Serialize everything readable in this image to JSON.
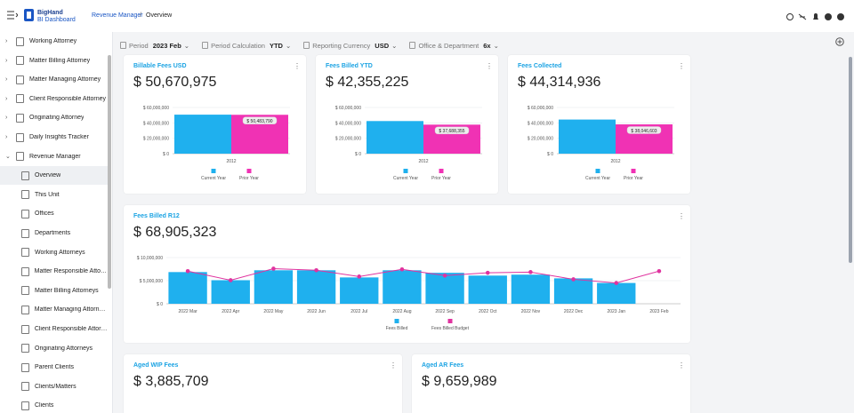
{
  "header": {
    "brand": "BigHand",
    "product": "BI Dashboard",
    "breadcrumb": [
      "Revenue Manager",
      "Overview"
    ]
  },
  "sidebar": {
    "items": [
      "Working Attorney",
      "Matter Billing Attorney",
      "Matter Managing Attorney",
      "Client Responsible Attorney",
      "Originating Attorney",
      "Daily Insights Tracker"
    ],
    "expanded": {
      "label": "Revenue Manager",
      "items": [
        "Overview",
        "This Unit",
        "Offices",
        "Departments",
        "Working Attorneys",
        "Matter Responsible Attorn...",
        "Matter Billing Attorneys",
        "Matter Managing Attorney...",
        "Client Responsible Attorn...",
        "Originating Attorneys",
        "Parent Clients",
        "Clients/Matters",
        "Clients"
      ]
    }
  },
  "filters": [
    {
      "label": "Period",
      "value": "2023 Feb"
    },
    {
      "label": "Period Calculation",
      "value": "YTD"
    },
    {
      "label": "Reporting Currency",
      "value": "USD"
    },
    {
      "label": "Office & Department",
      "value": "6x"
    }
  ],
  "cards": [
    {
      "title": "Billable Fees USD",
      "value": "$ 50,670,975",
      "chart": {
        "type": "bar",
        "categories": [
          "2012"
        ],
        "ylim": [
          0,
          60000000
        ],
        "yticks": [
          {
            "value": 0,
            "label": "$ 0"
          },
          {
            "value": 20000000,
            "label": "$ 20,000,000"
          },
          {
            "value": 40000000,
            "label": "$ 40,000,000"
          },
          {
            "value": 60000000,
            "label": "$ 60,000,000"
          }
        ],
        "grid": true,
        "series": [
          {
            "name": "Current Year",
            "color": "#1fb0ee",
            "values": [
              50670975
            ]
          },
          {
            "name": "Prior Year",
            "color": "#f032b4",
            "values": [
              50483790
            ],
            "value_labels": [
              "$ 50,483,790"
            ]
          }
        ]
      }
    },
    {
      "title": "Fees Billed YTD",
      "value": "$ 42,355,225",
      "chart": {
        "type": "bar",
        "categories": [
          "2012"
        ],
        "ylim": [
          0,
          60000000
        ],
        "yticks": [
          {
            "value": 0,
            "label": "$ 0"
          },
          {
            "value": 20000000,
            "label": "$ 20,000,000"
          },
          {
            "value": 40000000,
            "label": "$ 40,000,000"
          },
          {
            "value": 60000000,
            "label": "$ 60,000,000"
          }
        ],
        "grid": true,
        "series": [
          {
            "name": "Current Year",
            "color": "#1fb0ee",
            "values": [
              42355225
            ]
          },
          {
            "name": "Prior Year",
            "color": "#f032b4",
            "values": [
              37688355
            ],
            "value_labels": [
              "$ 37,688,355"
            ]
          }
        ]
      }
    },
    {
      "title": "Fees Collected",
      "value": "$ 44,314,936",
      "chart": {
        "type": "bar",
        "categories": [
          "2012"
        ],
        "ylim": [
          0,
          60000000
        ],
        "yticks": [
          {
            "value": 0,
            "label": "$ 0"
          },
          {
            "value": 20000000,
            "label": "$ 20,000,000"
          },
          {
            "value": 40000000,
            "label": "$ 40,000,000"
          },
          {
            "value": 60000000,
            "label": "$ 60,000,000"
          }
        ],
        "grid": true,
        "series": [
          {
            "name": "Current Year",
            "color": "#1fb0ee",
            "values": [
              44314936
            ]
          },
          {
            "name": "Prior Year",
            "color": "#f032b4",
            "values": [
              38046603
            ],
            "value_labels": [
              "$ 38,046,603"
            ]
          }
        ]
      }
    },
    {
      "title": "Fees Billed R12",
      "value": "$ 68,905,323",
      "chart": {
        "type": "bar-line",
        "categories": [
          "2022 Mar",
          "2022 Apr",
          "2022 May",
          "2022 Jun",
          "2022 Jul",
          "2022 Aug",
          "2022 Sep",
          "2022 Oct",
          "2022 Nov",
          "2022 Dec",
          "2023 Jan",
          "2023 Feb"
        ],
        "ylim": [
          0,
          10000000
        ],
        "yticks": [
          {
            "value": 0,
            "label": "$ 0"
          },
          {
            "value": 5000000,
            "label": "$ 5,000,000"
          },
          {
            "value": 10000000,
            "label": "$ 10,000,000"
          }
        ],
        "grid": true,
        "series": [
          {
            "name": "Fees Billed",
            "color": "#1fb0ee",
            "kind": "bar",
            "values": [
              6860000,
              5100000,
              7250000,
              7250000,
              5700000,
              7250000,
              6700000,
              6100000,
              6300000,
              5500000,
              4500000,
              null
            ]
          },
          {
            "name": "Fees Billed Budget",
            "color": "#e0339f",
            "kind": "line",
            "values": [
              7060000,
              5100000,
              7600000,
              7250000,
              5900000,
              7450000,
              6100000,
              6700000,
              6860000,
              5300000,
              4500000,
              7060000
            ]
          }
        ]
      }
    },
    {
      "title": "Aged WIP Fees",
      "value": "$ 3,885,709"
    },
    {
      "title": "Aged AR Fees",
      "value": "$ 9,659,989"
    }
  ]
}
